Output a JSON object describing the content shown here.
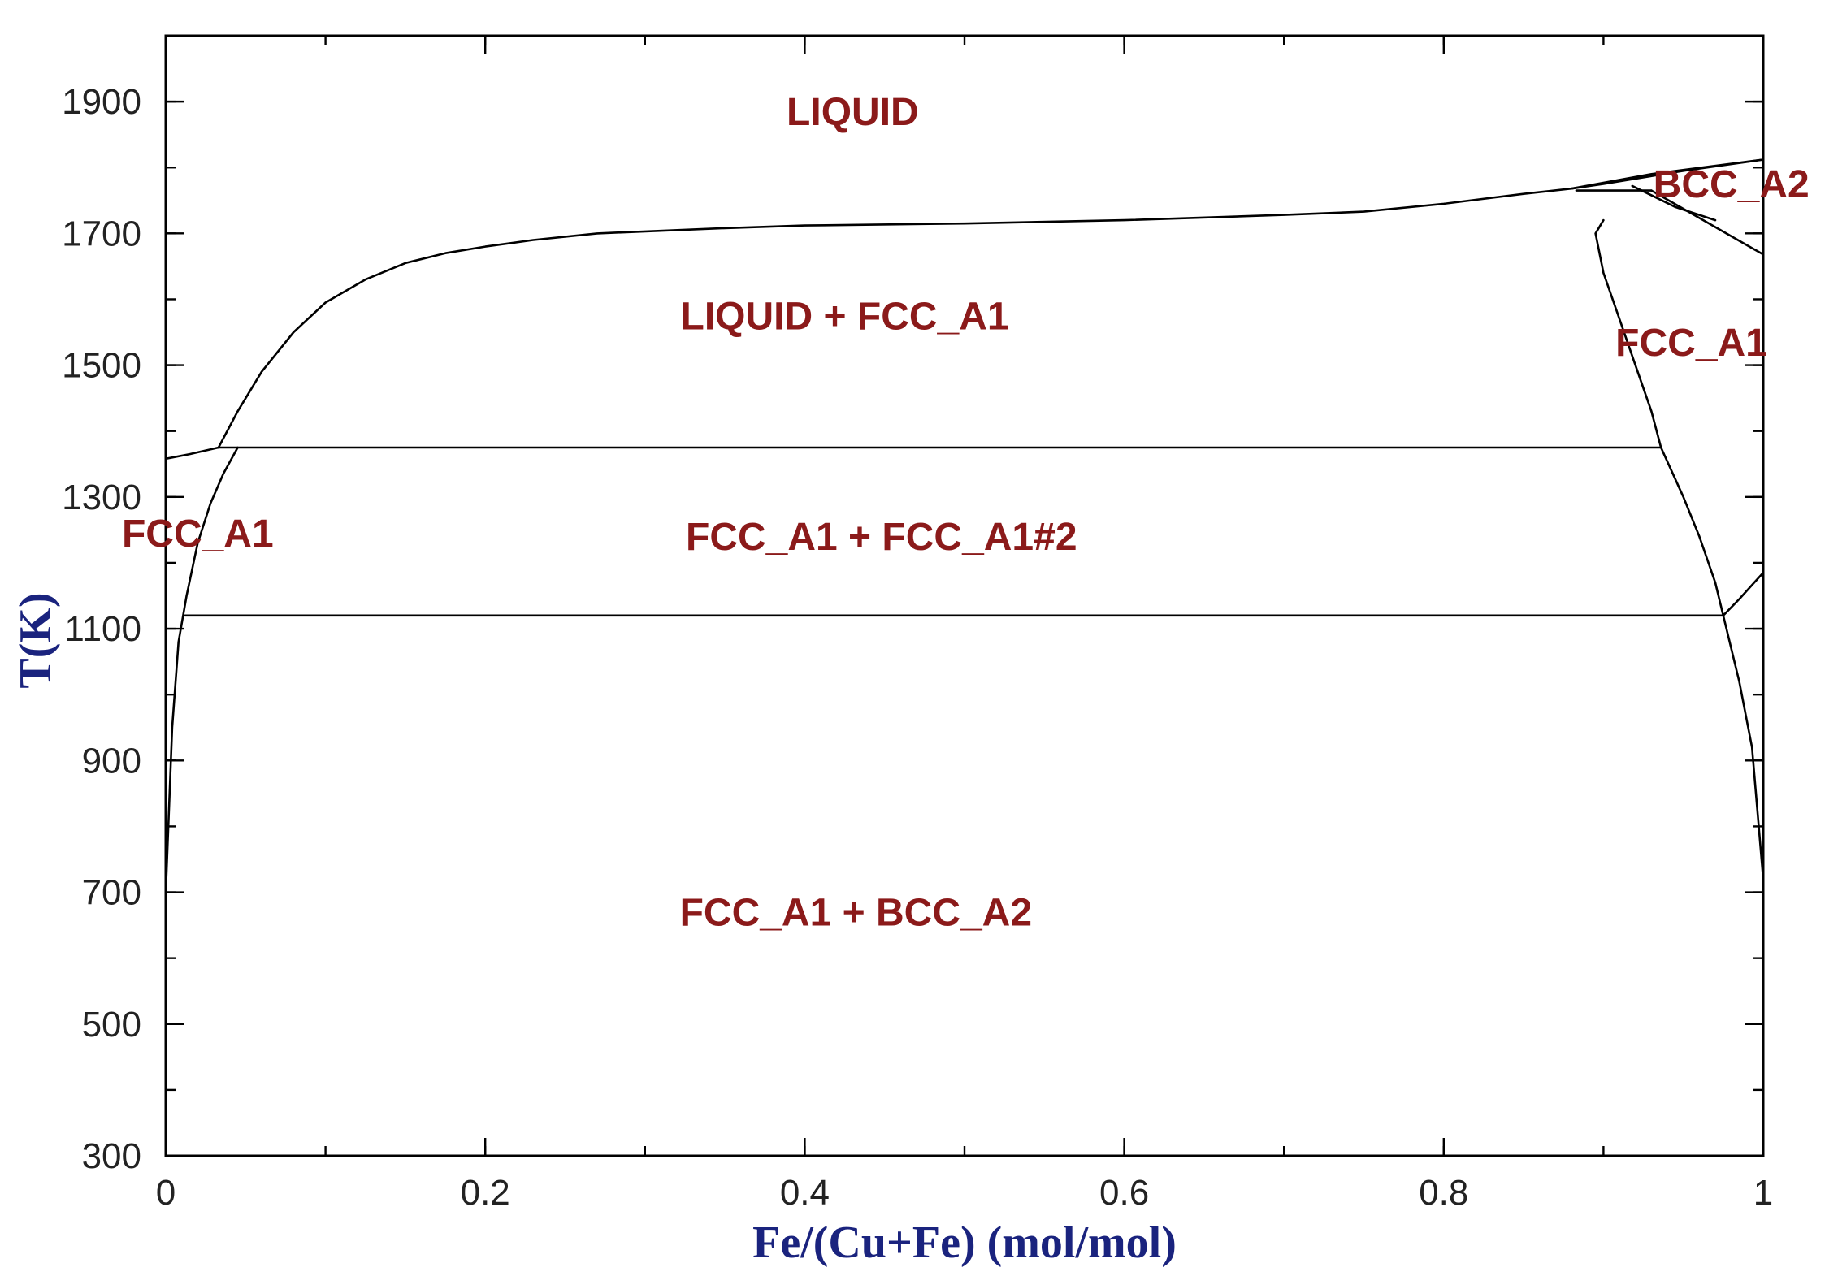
{
  "chart_data": {
    "type": "line",
    "title": "",
    "xlabel": "Fe/(Cu+Fe) (mol/mol)",
    "ylabel": "T(K)",
    "xlim": [
      0,
      1
    ],
    "ylim": [
      300,
      2000
    ],
    "x_ticks": [
      {
        "value": 0,
        "label": "0"
      },
      {
        "value": 0.2,
        "label": "0.2"
      },
      {
        "value": 0.4,
        "label": "0.4"
      },
      {
        "value": 0.6,
        "label": "0.6"
      },
      {
        "value": 0.8,
        "label": "0.8"
      },
      {
        "value": 1,
        "label": "1"
      }
    ],
    "y_ticks": [
      {
        "value": 300,
        "label": "300"
      },
      {
        "value": 500,
        "label": "500"
      },
      {
        "value": 700,
        "label": "700"
      },
      {
        "value": 900,
        "label": "900"
      },
      {
        "value": 1100,
        "label": "1100"
      },
      {
        "value": 1300,
        "label": "1300"
      },
      {
        "value": 1500,
        "label": "1500"
      },
      {
        "value": 1700,
        "label": "1700"
      },
      {
        "value": 1900,
        "label": "1900"
      }
    ],
    "x_minor_step": 0.1,
    "y_minor_step": 100,
    "grid": false,
    "series": [
      {
        "id": "liquidus",
        "x": [
          0.033,
          0.045,
          0.06,
          0.08,
          0.1,
          0.125,
          0.15,
          0.175,
          0.2,
          0.23,
          0.27,
          0.35,
          0.4,
          0.5,
          0.6,
          0.7,
          0.75,
          0.8,
          0.85,
          0.88,
          0.9,
          0.95,
          1.0
        ],
        "y": [
          1375,
          1430,
          1490,
          1550,
          1595,
          1630,
          1655,
          1670,
          1680,
          1690,
          1700,
          1708,
          1712,
          1715,
          1720,
          1728,
          1733,
          1745,
          1760,
          1768,
          1775,
          1795,
          1812
        ]
      },
      {
        "id": "fcc-cu-solidus",
        "x": [
          0.0,
          0.015,
          0.033
        ],
        "y": [
          1358,
          1365,
          1375
        ]
      },
      {
        "id": "fcc-cu-solvus",
        "x": [
          0.0,
          0.004,
          0.008,
          0.013,
          0.02,
          0.028,
          0.036,
          0.045
        ],
        "y": [
          700,
          950,
          1080,
          1150,
          1230,
          1290,
          1335,
          1375
        ]
      },
      {
        "id": "peritectic-1375",
        "x": [
          0.033,
          0.936
        ],
        "y": [
          1375,
          1375
        ]
      },
      {
        "id": "eutectoid-1120",
        "x": [
          0.012,
          0.975
        ],
        "y": [
          1120,
          1120
        ]
      },
      {
        "id": "delta-liquidus",
        "x": [
          0.88,
          0.93,
          1.0
        ],
        "y": [
          1768,
          1790,
          1812
        ]
      },
      {
        "id": "delta-eutectic-1765",
        "x": [
          0.883,
          0.93
        ],
        "y": [
          1765,
          1765
        ]
      },
      {
        "id": "delta-lower-boundary",
        "x": [
          0.93,
          1.0
        ],
        "y": [
          1765,
          1668
        ]
      },
      {
        "id": "delta-inner-boundary",
        "x": [
          0.918,
          0.945,
          0.97
        ],
        "y": [
          1772,
          1740,
          1720
        ]
      },
      {
        "id": "fcc-fe-solvus-left",
        "x": [
          0.9,
          0.895,
          0.9,
          0.91,
          0.92,
          0.93,
          0.936
        ],
        "y": [
          1720,
          1700,
          1640,
          1570,
          1500,
          1430,
          1375
        ]
      },
      {
        "id": "fcc-fe-lower-left",
        "x": [
          0.936,
          0.95,
          0.96,
          0.97,
          0.975
        ],
        "y": [
          1375,
          1300,
          1240,
          1170,
          1120
        ]
      },
      {
        "id": "fcc-fe-to-bcc-1120",
        "x": [
          0.975,
          0.985,
          1.0
        ],
        "y": [
          1120,
          1145,
          1185
        ]
      },
      {
        "id": "bcc-fe-solvus",
        "x": [
          0.975,
          0.985,
          0.993,
          1.0
        ],
        "y": [
          1120,
          1020,
          920,
          720
        ]
      }
    ],
    "annotations": [
      {
        "text": "LIQUID",
        "x": 0.43,
        "y": 1880
      },
      {
        "text": "LIQUID + FCC_A1",
        "x": 0.425,
        "y": 1570
      },
      {
        "text": "BCC_A2",
        "x": 0.98,
        "y": 1770
      },
      {
        "text": "FCC_A1",
        "x": 0.955,
        "y": 1530
      },
      {
        "text": "FCC_A1",
        "x": 0.02,
        "y": 1240
      },
      {
        "text": "FCC_A1 + FCC_A1#2",
        "x": 0.448,
        "y": 1235
      },
      {
        "text": "FCC_A1 + BCC_A2",
        "x": 0.432,
        "y": 665
      }
    ]
  }
}
